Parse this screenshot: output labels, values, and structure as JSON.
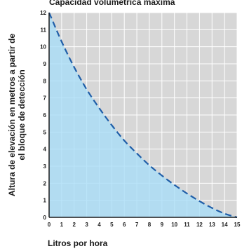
{
  "chart_data": {
    "type": "area",
    "title": "Capacidad volumétrica máxima",
    "xlabel": "Litros por hora",
    "ylabel_lines": [
      "Altura de elevación en metros a partir de",
      "el bloque de detección"
    ],
    "x_ticks": [
      "0",
      "1",
      "2",
      "3",
      "4",
      "5",
      "6",
      "7",
      "8",
      "9",
      "10",
      "11",
      "12",
      "13",
      "14",
      "15"
    ],
    "y_ticks": [
      "0",
      "1",
      "2",
      "3",
      "4",
      "5",
      "6",
      "7",
      "8",
      "9",
      "10",
      "11",
      "12"
    ],
    "xlim": [
      0,
      15
    ],
    "ylim": [
      0,
      12
    ],
    "grid": true,
    "series": [
      {
        "x": [
          0,
          1,
          2,
          3,
          4,
          5,
          6,
          7,
          8,
          9,
          10,
          11,
          12,
          13,
          14,
          15
        ],
        "y": [
          12,
          10.3,
          8.8,
          7.5,
          6.4,
          5.4,
          4.5,
          3.75,
          3.05,
          2.45,
          1.9,
          1.4,
          0.95,
          0.55,
          0.22,
          0
        ]
      }
    ],
    "colors": {
      "fill": "#a9ddf7",
      "curve": "#1f5ea8",
      "background": "#d7d7d7",
      "grid": "#ffffff"
    }
  }
}
